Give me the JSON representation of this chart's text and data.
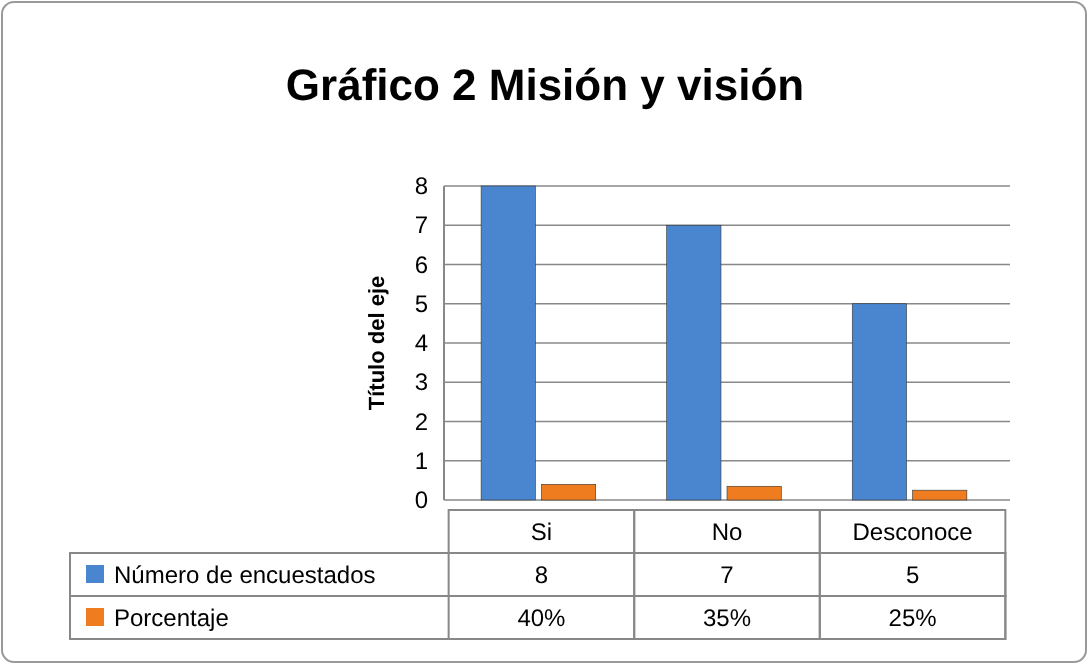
{
  "chart_data": {
    "type": "bar",
    "title": "Gráfico 2 Misión y visión",
    "ylabel": "Título del eje",
    "categories": [
      "Si",
      "No",
      "Desconoce"
    ],
    "series": [
      {
        "name": "Número de encuestados",
        "color": "#4a86d0",
        "values": [
          8,
          7,
          5
        ],
        "value_labels": [
          "8",
          "7",
          "5"
        ]
      },
      {
        "name": "Porcentaje",
        "color": "#f07c20",
        "values": [
          0.4,
          0.35,
          0.25
        ],
        "value_labels": [
          "40%",
          "35%",
          "25%"
        ]
      }
    ],
    "ylim": [
      0,
      8
    ],
    "yticks": [
      0,
      1,
      2,
      3,
      4,
      5,
      6,
      7,
      8
    ],
    "grid": "y",
    "legend": "bottom"
  }
}
